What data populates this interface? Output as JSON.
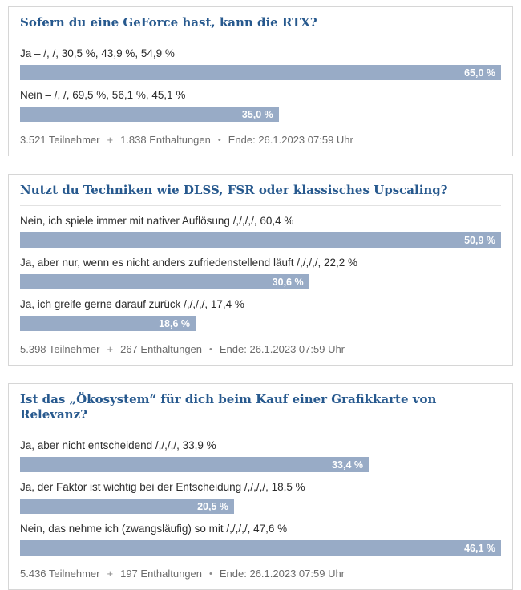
{
  "colors": {
    "title_blue": "#27598e",
    "bar_blue": "#98abc6",
    "footer_gray": "#6b6b6b"
  },
  "polls": [
    {
      "title": "Sofern du eine GeForce hast, kann die RTX?",
      "options": [
        {
          "label": "Ja – /, /, 30,5 %, 43,9 %, 54,9 %",
          "percent": 65.0,
          "percent_label": "65,0 %"
        },
        {
          "label": "Nein – /, /, 69,5 %, 56,1 %, 45,1 %",
          "percent": 35.0,
          "percent_label": "35,0 %"
        }
      ],
      "footer": {
        "participants": "3.521 Teilnehmer",
        "plus": "+",
        "abstentions": "1.838 Enthaltungen",
        "bullet": "•",
        "end": "Ende: 26.1.2023 07:59 Uhr"
      }
    },
    {
      "title": "Nutzt du Techniken wie DLSS, FSR oder klassisches Upscaling?",
      "options": [
        {
          "label": "Nein, ich spiele immer mit nativer Auflösung /,/,/,/, 60,4 %",
          "percent": 50.9,
          "percent_label": "50,9 %"
        },
        {
          "label": "Ja, aber nur, wenn es nicht anders zufriedenstellend läuft /,/,/,/, 22,2 %",
          "percent": 30.6,
          "percent_label": "30,6 %"
        },
        {
          "label": "Ja, ich greife gerne darauf zurück /,/,/,/, 17,4 %",
          "percent": 18.6,
          "percent_label": "18,6 %"
        }
      ],
      "footer": {
        "participants": "5.398 Teilnehmer",
        "plus": "+",
        "abstentions": "267 Enthaltungen",
        "bullet": "•",
        "end": "Ende: 26.1.2023 07:59 Uhr"
      }
    },
    {
      "title": "Ist das „Ökosystem“ für dich beim Kauf einer Grafikkarte von Relevanz?",
      "options": [
        {
          "label": "Ja, aber nicht entscheidend /,/,/,/, 33,9 %",
          "percent": 33.4,
          "percent_label": "33,4 %"
        },
        {
          "label": "Ja, der Faktor ist wichtig bei der Entscheidung /,/,/,/, 18,5 %",
          "percent": 20.5,
          "percent_label": "20,5 %"
        },
        {
          "label": "Nein, das nehme ich (zwangsläufig) so mit /,/,/,/, 47,6 %",
          "percent": 46.1,
          "percent_label": "46,1 %"
        }
      ],
      "footer": {
        "participants": "5.436 Teilnehmer",
        "plus": "+",
        "abstentions": "197 Enthaltungen",
        "bullet": "•",
        "end": "Ende: 26.1.2023 07:59 Uhr"
      }
    }
  ],
  "chart_data": [
    {
      "type": "bar",
      "orientation": "horizontal",
      "title": "Sofern du eine GeForce hast, kann die RTX?",
      "categories": [
        "Ja – /, /, 30,5 %, 43,9 %, 54,9 %",
        "Nein – /, /, 69,5 %, 56,1 %, 45,1 %"
      ],
      "values": [
        65.0,
        35.0
      ],
      "unit": "%",
      "bar_scaling": "relative-to-max",
      "footnote": "3.521 Teilnehmer + 1.838 Enthaltungen • Ende: 26.1.2023 07:59 Uhr"
    },
    {
      "type": "bar",
      "orientation": "horizontal",
      "title": "Nutzt du Techniken wie DLSS, FSR oder klassisches Upscaling?",
      "categories": [
        "Nein, ich spiele immer mit nativer Auflösung /,/,/,/, 60,4 %",
        "Ja, aber nur, wenn es nicht anders zufriedenstellend läuft /,/,/,/, 22,2 %",
        "Ja, ich greife gerne darauf zurück /,/,/,/, 17,4 %"
      ],
      "values": [
        50.9,
        30.6,
        18.6
      ],
      "unit": "%",
      "bar_scaling": "relative-to-max",
      "footnote": "5.398 Teilnehmer + 267 Enthaltungen • Ende: 26.1.2023 07:59 Uhr"
    },
    {
      "type": "bar",
      "orientation": "horizontal",
      "title": "Ist das „Ökosystem“ für dich beim Kauf einer Grafikkarte von Relevanz?",
      "categories": [
        "Ja, aber nicht entscheidend /,/,/,/, 33,9 %",
        "Ja, der Faktor ist wichtig bei der Entscheidung /,/,/,/, 18,5 %",
        "Nein, das nehme ich (zwangsläufig) so mit /,/,/,/, 47,6 %"
      ],
      "values": [
        33.4,
        20.5,
        46.1
      ],
      "unit": "%",
      "bar_scaling": "relative-to-max",
      "footnote": "5.436 Teilnehmer + 197 Enthaltungen • Ende: 26.1.2023 07:59 Uhr"
    }
  ]
}
